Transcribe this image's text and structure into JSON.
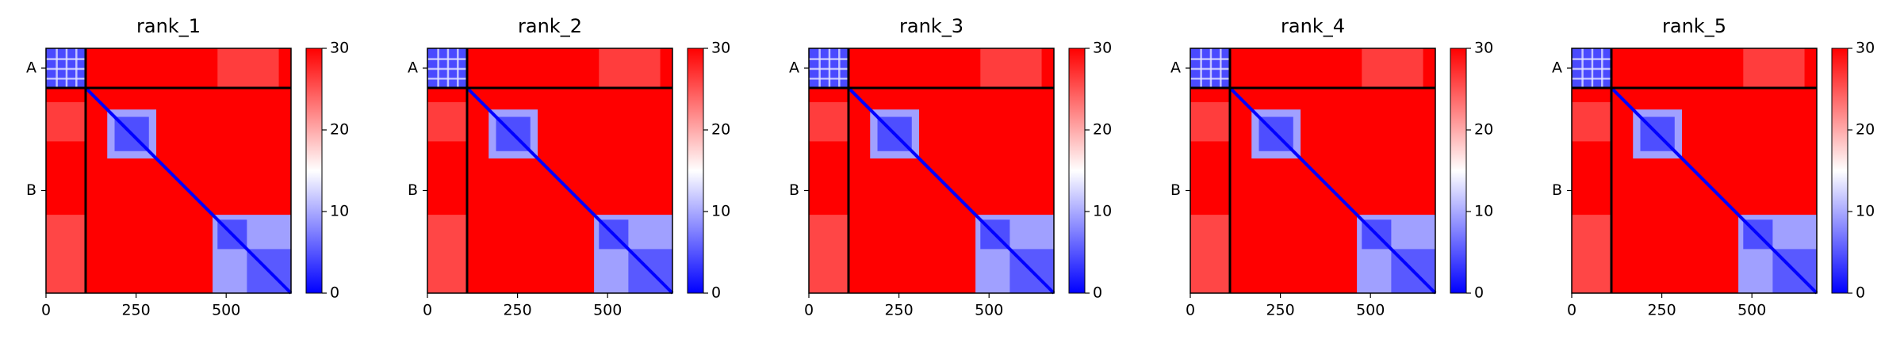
{
  "chart_data": [
    {
      "type": "heatmap",
      "title": "rank_1",
      "xlim": [
        0,
        680
      ],
      "ylim": [
        680,
        0
      ],
      "xticks": [
        0,
        250,
        500
      ],
      "yticks": [
        {
          "value": 55,
          "label": "A"
        },
        {
          "value": 395,
          "label": "B"
        }
      ],
      "chain_breaks": [
        110
      ],
      "clim": [
        0,
        30
      ],
      "cticks": [
        0,
        10,
        20,
        30
      ],
      "colors": [
        "#0000ff",
        "#ffffff",
        "#ff0000"
      ]
    },
    {
      "type": "heatmap",
      "title": "rank_2",
      "xlim": [
        0,
        680
      ],
      "ylim": [
        680,
        0
      ],
      "xticks": [
        0,
        250,
        500
      ],
      "yticks": [
        {
          "value": 55,
          "label": "A"
        },
        {
          "value": 395,
          "label": "B"
        }
      ],
      "chain_breaks": [
        110
      ],
      "clim": [
        0,
        30
      ],
      "cticks": [
        0,
        10,
        20,
        30
      ],
      "colors": [
        "#0000ff",
        "#ffffff",
        "#ff0000"
      ]
    },
    {
      "type": "heatmap",
      "title": "rank_3",
      "xlim": [
        0,
        680
      ],
      "ylim": [
        680,
        0
      ],
      "xticks": [
        0,
        250,
        500
      ],
      "yticks": [
        {
          "value": 55,
          "label": "A"
        },
        {
          "value": 395,
          "label": "B"
        }
      ],
      "chain_breaks": [
        110
      ],
      "clim": [
        0,
        30
      ],
      "cticks": [
        0,
        10,
        20,
        30
      ],
      "colors": [
        "#0000ff",
        "#ffffff",
        "#ff0000"
      ]
    },
    {
      "type": "heatmap",
      "title": "rank_4",
      "xlim": [
        0,
        680
      ],
      "ylim": [
        680,
        0
      ],
      "xticks": [
        0,
        250,
        500
      ],
      "yticks": [
        {
          "value": 55,
          "label": "A"
        },
        {
          "value": 395,
          "label": "B"
        }
      ],
      "chain_breaks": [
        110
      ],
      "clim": [
        0,
        30
      ],
      "cticks": [
        0,
        10,
        20,
        30
      ],
      "colors": [
        "#0000ff",
        "#ffffff",
        "#ff0000"
      ]
    },
    {
      "type": "heatmap",
      "title": "rank_5",
      "xlim": [
        0,
        680
      ],
      "ylim": [
        680,
        0
      ],
      "xticks": [
        0,
        250,
        500
      ],
      "yticks": [
        {
          "value": 55,
          "label": "A"
        },
        {
          "value": 395,
          "label": "B"
        }
      ],
      "chain_breaks": [
        110
      ],
      "clim": [
        0,
        30
      ],
      "cticks": [
        0,
        10,
        20,
        30
      ],
      "colors": [
        "#0000ff",
        "#ffffff",
        "#ff0000"
      ]
    }
  ]
}
